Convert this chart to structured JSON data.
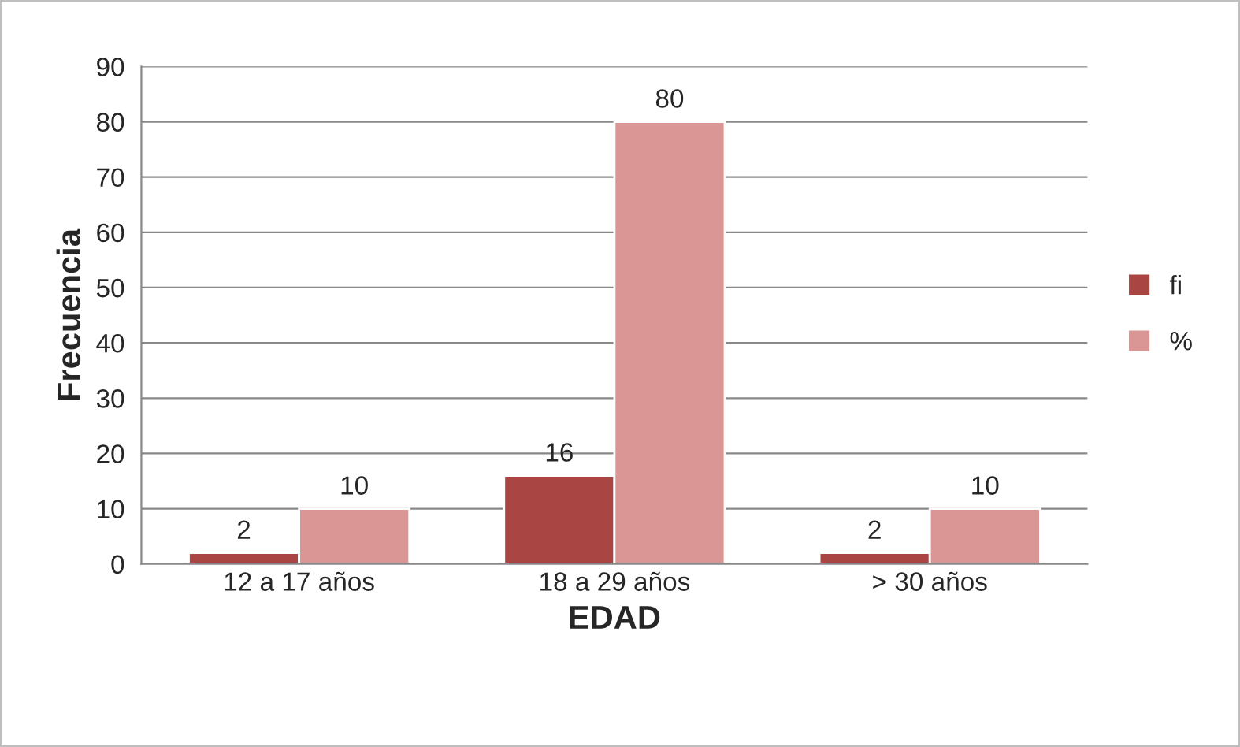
{
  "chart_data": {
    "type": "bar",
    "xlabel": "EDAD",
    "ylabel": "Frecuencia",
    "categories": [
      "12 a 17 años",
      "18 a 29 años",
      "> 30 años"
    ],
    "series": [
      {
        "name": "fi",
        "color": "#a94643",
        "values": [
          2,
          16,
          2
        ]
      },
      {
        "name": "%",
        "color": "#d99694",
        "values": [
          10,
          80,
          10
        ]
      }
    ],
    "ylim": [
      0,
      90
    ],
    "yticks": [
      0,
      10,
      20,
      30,
      40,
      50,
      60,
      70,
      80,
      90
    ],
    "grid": "y",
    "legend": "right",
    "data_labels": true
  }
}
